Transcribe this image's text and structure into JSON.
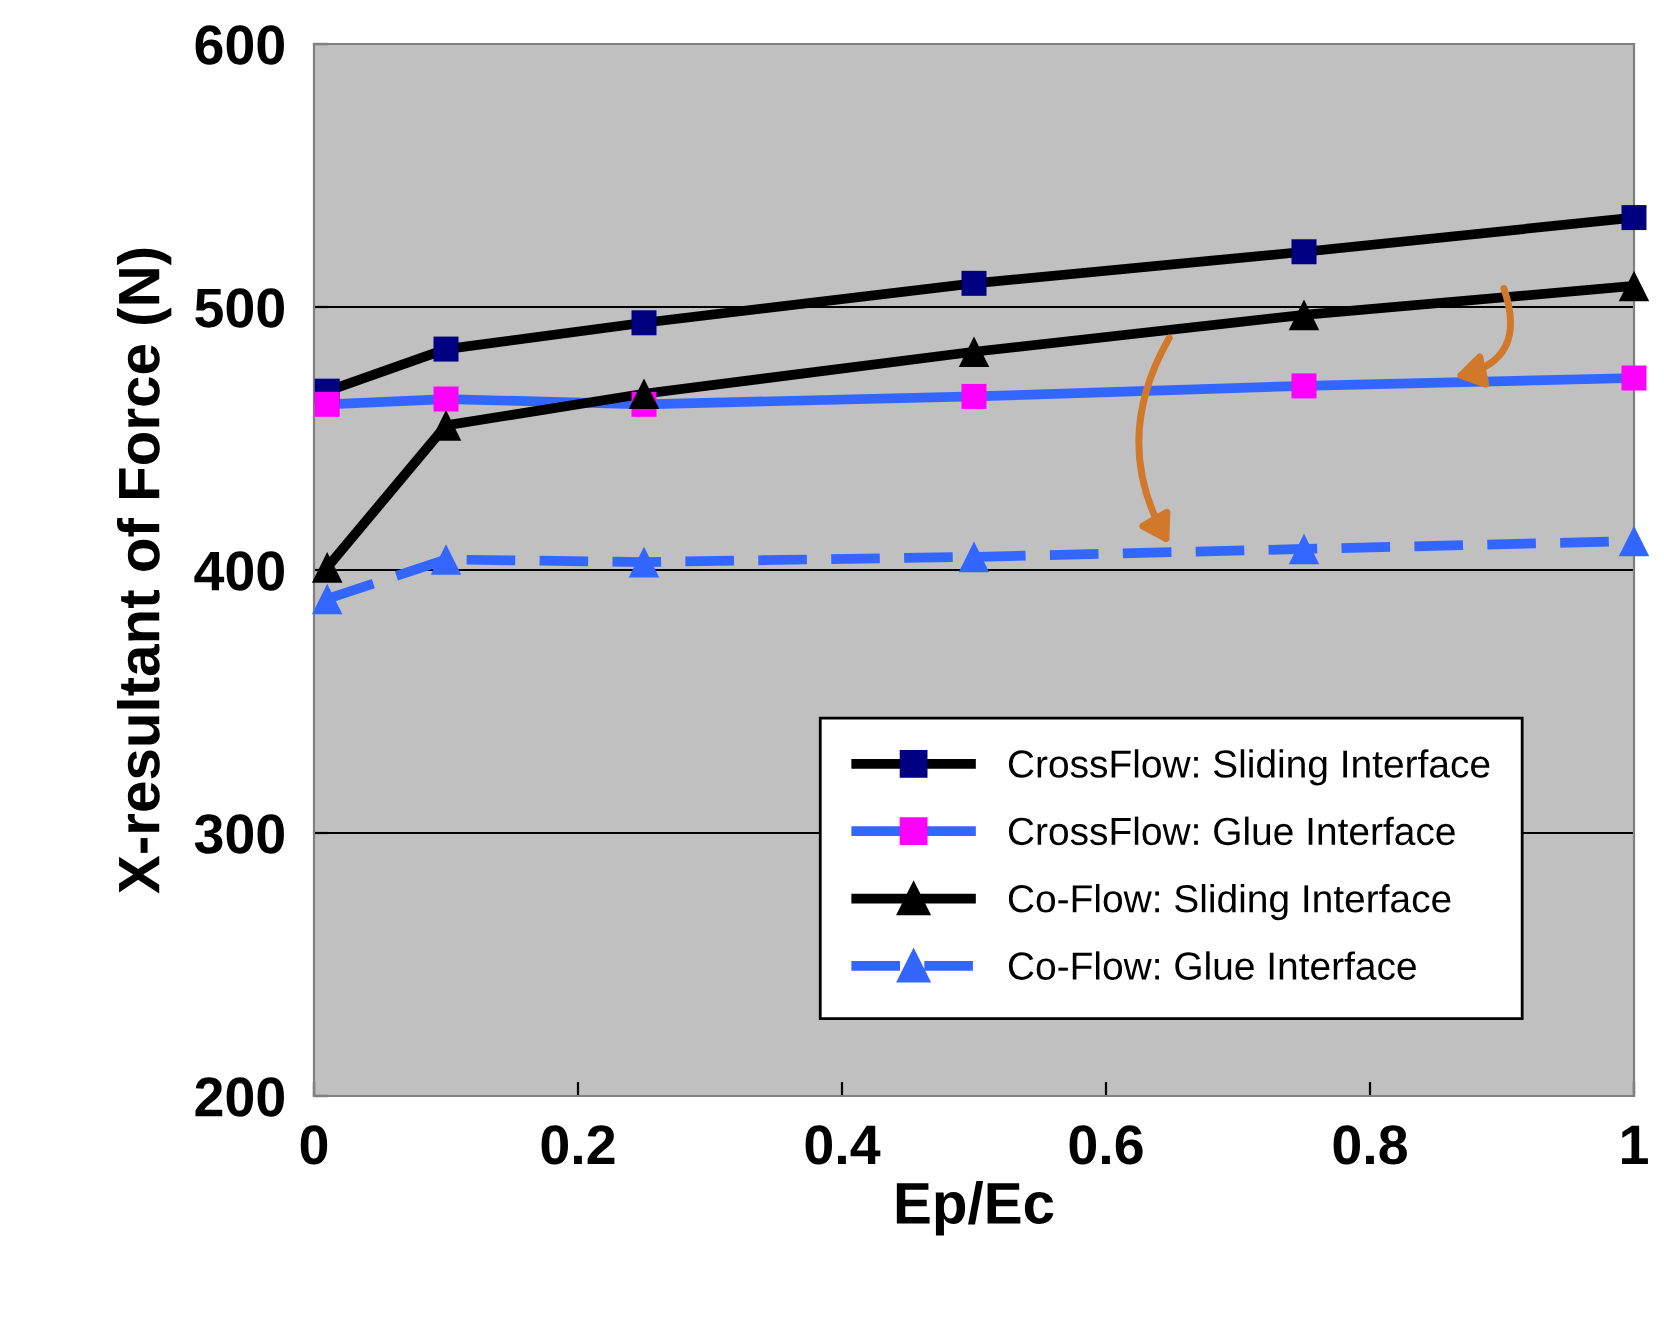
{
  "chart_data": {
    "type": "line",
    "xlabel": "Ep/Ec",
    "ylabel": "X-resultant of Force (N)",
    "x": [
      0.01,
      0.1,
      0.25,
      0.5,
      0.75,
      1
    ],
    "series": [
      {
        "name": "CrossFlow: Sliding Interface",
        "color": "#000000",
        "colors": [
          "#000080",
          "#000080",
          "#000080",
          "#000080",
          "#000080",
          "#000080"
        ],
        "marker": "square",
        "line_style": "solid",
        "values": [
          468,
          484,
          494,
          509,
          521,
          534
        ]
      },
      {
        "name": "CrossFlow: Glue Interface",
        "color": "#3366ff",
        "colors": [
          "#ff00ff",
          "#ff00ff",
          "#ff00ff",
          "#ff00ff",
          "#ff00ff",
          "#ff00ff"
        ],
        "marker": "square",
        "line_style": "solid",
        "values": [
          463,
          465,
          463,
          466,
          470,
          473
        ]
      },
      {
        "name": "Co-Flow: Sliding Interface",
        "color": "#000000",
        "colors": [
          "#000000",
          "#000000",
          "#000000",
          "#000000",
          "#000000",
          "#000000"
        ],
        "marker": "triangle",
        "line_style": "solid",
        "values": [
          401,
          455,
          467,
          483,
          497,
          508
        ]
      },
      {
        "name": "Co-Flow: Glue Interface",
        "color": "#3366ff",
        "colors": [
          "#3366ff",
          "#3366ff",
          "#3366ff",
          "#3366ff",
          "#3366ff",
          "#3366ff"
        ],
        "marker": "triangle",
        "line_style": "dashed",
        "values": [
          389,
          404,
          403,
          405,
          408,
          411
        ]
      }
    ],
    "xlim": [
      0,
      1
    ],
    "xticks": [
      0,
      0.2,
      0.4,
      0.6,
      0.8,
      1
    ],
    "ylim": [
      200,
      600
    ],
    "yticks": [
      200,
      300,
      400,
      500,
      600
    ],
    "grid": "y",
    "legend": "bottom right"
  }
}
